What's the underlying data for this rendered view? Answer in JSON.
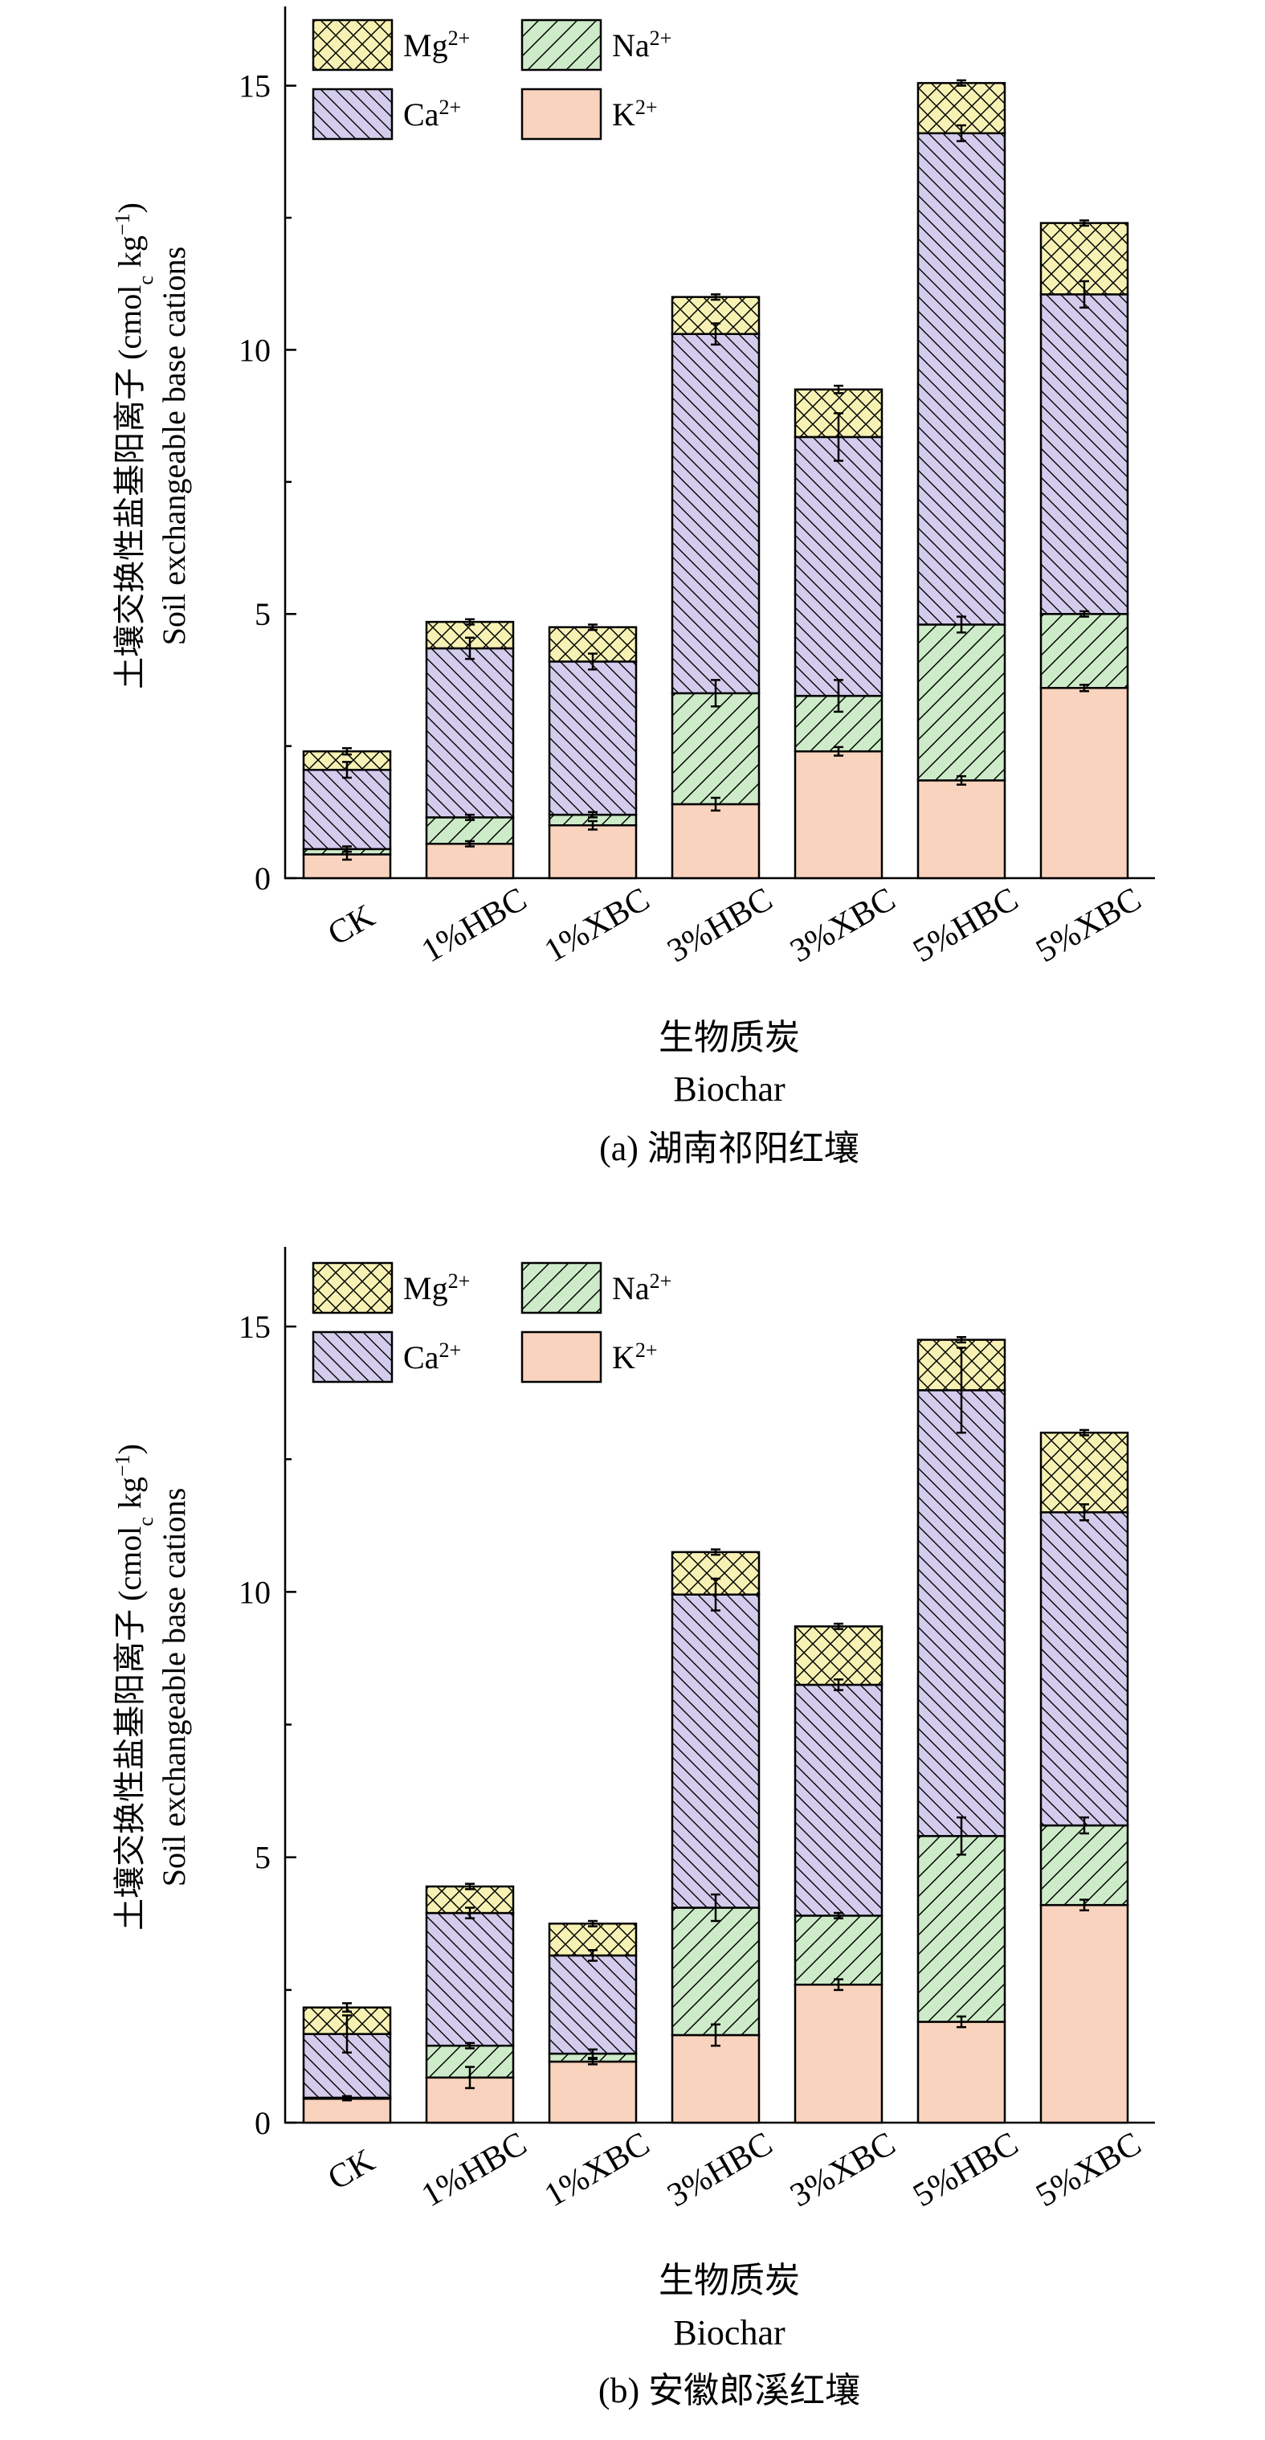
{
  "colors": {
    "Mg": "#f7f2b4",
    "Na": "#cdebc8",
    "Ca": "#d4ccec",
    "K": "#f9d3bd"
  },
  "axis": {
    "ylabel_cn": "土壤交换性盐基阳离子 (cmol",
    "ylabel_sub": "c",
    "ylabel_unit": " kg",
    "ylabel_sup": "−1",
    "ylabel_close": ")",
    "ylabel_en": "Soil exchangeable base cations",
    "xlabel_cn": "生物质炭",
    "xlabel_en": "Biochar"
  },
  "legend": [
    {
      "key": "Mg",
      "base": "Mg",
      "sup": "2+"
    },
    {
      "key": "Na",
      "base": "Na",
      "sup": "2+"
    },
    {
      "key": "Ca",
      "base": "Ca",
      "sup": "2+"
    },
    {
      "key": "K",
      "base": "K",
      "sup": "2+"
    }
  ],
  "chart_data": [
    {
      "type": "bar",
      "stacked": true,
      "caption": "(a) 湖南祁阳红壤",
      "categories": [
        "CK",
        "1%HBC",
        "1%XBC",
        "3%HBC",
        "3%XBC",
        "5%HBC",
        "5%XBC"
      ],
      "ylim": [
        0,
        16.5
      ],
      "yticks": [
        0,
        5,
        10,
        15
      ],
      "series": [
        {
          "name": "K2+",
          "key": "K",
          "values": [
            0.45,
            0.65,
            1.0,
            1.4,
            2.4,
            1.85,
            3.6
          ],
          "errors": [
            0.1,
            0.05,
            0.08,
            0.12,
            0.08,
            0.08,
            0.06
          ]
        },
        {
          "name": "Na2+",
          "key": "Na",
          "values": [
            0.1,
            0.5,
            0.2,
            2.1,
            1.05,
            2.95,
            1.4
          ],
          "errors": [
            0.05,
            0.05,
            0.05,
            0.25,
            0.3,
            0.15,
            0.05
          ]
        },
        {
          "name": "Ca2+",
          "key": "Ca",
          "values": [
            1.5,
            3.2,
            2.9,
            6.8,
            4.9,
            9.3,
            6.05
          ],
          "errors": [
            0.15,
            0.2,
            0.15,
            0.2,
            0.45,
            0.15,
            0.25
          ]
        },
        {
          "name": "Mg2+",
          "key": "Mg",
          "values": [
            0.35,
            0.5,
            0.65,
            0.7,
            0.9,
            0.95,
            1.35
          ],
          "errors": [
            0.06,
            0.05,
            0.05,
            0.05,
            0.07,
            0.05,
            0.05
          ]
        }
      ]
    },
    {
      "type": "bar",
      "stacked": true,
      "caption": "(b) 安徽郎溪红壤",
      "categories": [
        "CK",
        "1%HBC",
        "1%XBC",
        "3%HBC",
        "3%XBC",
        "5%HBC",
        "5%XBC"
      ],
      "ylim": [
        0,
        16.5
      ],
      "yticks": [
        0,
        5,
        10,
        15
      ],
      "series": [
        {
          "name": "K2+",
          "key": "K",
          "values": [
            0.45,
            0.85,
            1.15,
            1.65,
            2.6,
            1.9,
            4.1
          ],
          "errors": [
            0.03,
            0.2,
            0.05,
            0.2,
            0.1,
            0.1,
            0.1
          ]
        },
        {
          "name": "Na2+",
          "key": "Na",
          "values": [
            0.02,
            0.6,
            0.15,
            2.4,
            1.3,
            3.5,
            1.5
          ],
          "errors": [
            0.03,
            0.05,
            0.08,
            0.25,
            0.05,
            0.35,
            0.15
          ]
        },
        {
          "name": "Ca2+",
          "key": "Ca",
          "values": [
            1.2,
            2.5,
            1.85,
            5.9,
            4.35,
            8.4,
            5.9
          ],
          "errors": [
            0.35,
            0.1,
            0.1,
            0.3,
            0.1,
            0.8,
            0.15
          ]
        },
        {
          "name": "Mg2+",
          "key": "Mg",
          "values": [
            0.5,
            0.5,
            0.6,
            0.8,
            1.1,
            0.95,
            1.5
          ],
          "errors": [
            0.08,
            0.05,
            0.05,
            0.05,
            0.05,
            0.05,
            0.05
          ]
        }
      ]
    }
  ]
}
